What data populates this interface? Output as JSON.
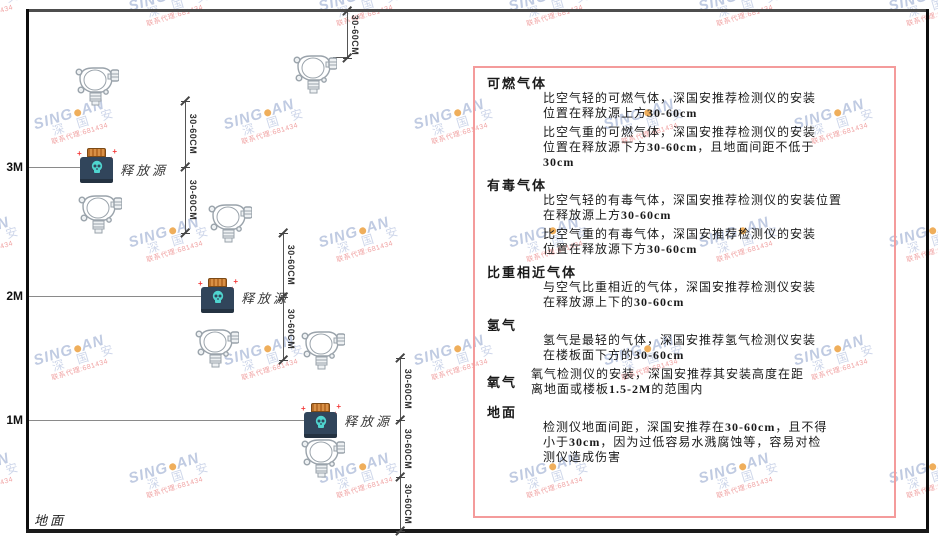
{
  "diagram": {
    "height_labels": [
      "3M",
      "2M",
      "1M"
    ],
    "ground_label": "地面",
    "release_source_label": "释放源",
    "dim_label": "30-60CM"
  },
  "panel": {
    "sections": [
      {
        "title": "可燃气体",
        "inline": false,
        "paragraphs": [
          [
            "比空气轻的可燃气体，深国安推荐检测仪的安装",
            "位置在释放源上方30-60cm"
          ],
          [
            "比空气重的可燃气体，深国安推荐检测仪的安装",
            "位置在释放源下方30-60cm，且地面间距不低于",
            "30cm"
          ]
        ]
      },
      {
        "title": "有毒气体",
        "inline": false,
        "paragraphs": [
          [
            "比空气轻的有毒气体，深国安推荐检测仪的安装位置",
            "在释放源上方30-60cm"
          ],
          [
            "比空气重的有毒气体，深国安推荐检测仪的安装",
            "位置在释放源下方30-60cm"
          ]
        ]
      },
      {
        "title": "比重相近气体",
        "inline": false,
        "paragraphs": [
          [
            "与空气比重相近的气体，深国安推荐检测仪安装",
            "在释放源上下的30-60cm"
          ]
        ]
      },
      {
        "title": "氢气",
        "inline": false,
        "paragraphs": [
          [
            "氢气是最轻的气体，深国安推荐氢气检测仪安装",
            "在楼板面下方的30-60cm"
          ]
        ]
      },
      {
        "title": "氧气",
        "inline": true,
        "paragraphs": [
          [
            "氧气检测仪的安装，深国安推荐其安装高度在距",
            "离地面或楼板1.5-2M的范围内"
          ]
        ]
      },
      {
        "title": "地面",
        "inline": false,
        "paragraphs": [
          [
            "检测仪地面间距，深国安推荐在30-60cm，且不得",
            "小于30cm，因为过低容易水溅腐蚀等，容易对检",
            "测仪造成伤害"
          ]
        ]
      }
    ]
  },
  "watermark": {
    "sing": "SING",
    "an": "AN",
    "cjk": "深 国 安",
    "contact": "联系代理:681434"
  },
  "colors": {
    "panel_border": "#f49b9b",
    "watermark_blue": "#b6c2dd",
    "watermark_orange": "#eda13f",
    "watermark_red": "#ee9292",
    "release_source_body": "#31455b",
    "release_source_cap": "#b96e28",
    "release_source_skull": "#4fd4cf",
    "detector_outline": "#9aa3ab"
  }
}
